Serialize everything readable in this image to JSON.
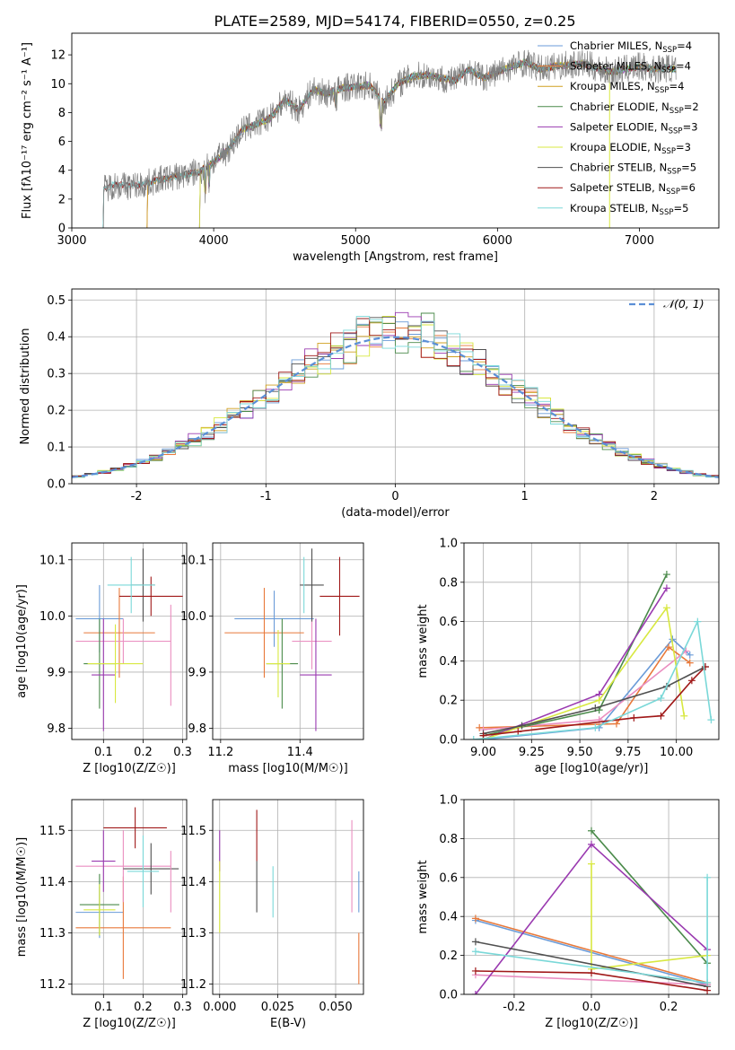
{
  "figure": {
    "title": "PLATE=2589, MJD=54174, FIBERID=0550, z=0.25"
  },
  "chart_data": [
    {
      "id": "spectrum",
      "type": "line",
      "title": "PLATE=2589, MJD=54174, FIBERID=0550, z=0.25",
      "xlabel": "wavelength [Angstrom, rest frame]",
      "ylabel": "Flux [fλ10⁻¹⁷ erg cm⁻² s⁻¹ A⁻¹]",
      "xlim": [
        3000,
        7560
      ],
      "ylim": [
        0,
        13.5
      ],
      "xticks": [
        3000,
        4000,
        5000,
        6000,
        7000
      ],
      "yticks": [
        0,
        2,
        4,
        6,
        8,
        10,
        12
      ],
      "grid": false,
      "legend_position": "top-right",
      "observed": {
        "color": "#808080",
        "x": [
          3220,
          3300,
          3400,
          3500,
          3600,
          3700,
          3800,
          3900,
          4000,
          4100,
          4200,
          4300,
          4400,
          4500,
          4600,
          4700,
          4800,
          4900,
          5000,
          5100,
          5200,
          5300,
          5400,
          5500,
          5600,
          5700,
          5800,
          5900,
          6000,
          6100,
          6200,
          6300,
          6400,
          6500,
          6600,
          6700,
          6800,
          6900,
          7000,
          7100,
          7200,
          7260
        ],
        "y": [
          2.7,
          3.0,
          2.9,
          3.0,
          3.3,
          3.5,
          3.7,
          3.9,
          4.6,
          5.4,
          6.8,
          7.2,
          7.6,
          8.9,
          8.2,
          9.6,
          9.3,
          9.7,
          9.8,
          9.9,
          8.7,
          10.0,
          10.5,
          10.6,
          10.4,
          10.2,
          11.0,
          10.4,
          10.8,
          11.2,
          11.5,
          11.0,
          11.2,
          11.3,
          11.4,
          11.1,
          10.8,
          11.0,
          11.2,
          11.0,
          11.1,
          11.0
        ]
      },
      "series": [
        {
          "name": "Chabrier MILES, N_SSP=4",
          "color": "#6a9bd8",
          "lo": 3530
        },
        {
          "name": "Salpeter MILES, N_SSP=4",
          "color": "#e8793a",
          "lo": 3530
        },
        {
          "name": "Kroupa MILES, N_SSP=4",
          "color": "#d0a020",
          "lo": 3530
        },
        {
          "name": "Chabrier ELODIE, N_SSP=2",
          "color": "#4a8a4a",
          "lo": 3900
        },
        {
          "name": "Salpeter ELODIE, N_SSP=3",
          "color": "#9a3ab0",
          "lo": 3900
        },
        {
          "name": "Kroupa ELODIE, N_SSP=3",
          "color": "#d8e840",
          "lo": 3900
        },
        {
          "name": "Chabrier STELIB, N_SSP=5",
          "color": "#505050",
          "lo": 3220
        },
        {
          "name": "Salpeter STELIB, N_SSP=6",
          "color": "#a01818",
          "lo": 3220
        },
        {
          "name": "Kroupa STELIB, N_SSP=5",
          "color": "#7ad8d8",
          "lo": 3220
        }
      ]
    },
    {
      "id": "residuals",
      "type": "line",
      "xlabel": "(data-model)/error",
      "ylabel": "Normed distribution",
      "xlim": [
        -2.5,
        2.5
      ],
      "ylim": [
        0,
        0.53
      ],
      "xticks": [
        -2,
        -1,
        0,
        1,
        2
      ],
      "yticks": [
        0.0,
        0.1,
        0.2,
        0.3,
        0.4,
        0.5
      ],
      "grid": true,
      "legend_position": "top-right",
      "gaussian": {
        "name": "N(0,1)",
        "color": "#5b8fd6",
        "mu": 0,
        "sigma": 1
      },
      "histogram_bin_width": 0.1,
      "histogram_colors": [
        "#6a9bd8",
        "#e8793a",
        "#d0a020",
        "#4a8a4a",
        "#9a3ab0",
        "#d8e840",
        "#505050",
        "#a01818",
        "#7ad8d8"
      ]
    },
    {
      "id": "age-vs-Z",
      "type": "scatter",
      "xlabel": "Z [log10(Z/Z☉)]",
      "ylabel": "age  [log10(age/yr)]",
      "xlim": [
        0.02,
        0.31
      ],
      "ylim": [
        9.78,
        10.13
      ],
      "xticks": [
        0.1,
        0.2,
        0.3
      ],
      "yticks": [
        9.8,
        9.9,
        10.0,
        10.1
      ],
      "grid": true,
      "points": [
        {
          "color": "#6a9bd8",
          "x": 0.09,
          "xerr": 0.06,
          "y": 9.995,
          "yerr": 0.06
        },
        {
          "color": "#e8793a",
          "x": 0.14,
          "xerr": 0.09,
          "y": 9.97,
          "yerr": 0.08
        },
        {
          "color": "#ea8ec0",
          "x": 0.15,
          "xerr": 0.12,
          "y": 9.955,
          "yerr": 0.04
        },
        {
          "color": "#4a8a4a",
          "x": 0.09,
          "xerr": 0.04,
          "y": 9.915,
          "yerr": 0.08
        },
        {
          "color": "#9a3ab0",
          "x": 0.1,
          "xerr": 0.03,
          "y": 9.895,
          "yerr": 0.1
        },
        {
          "color": "#d8e840",
          "x": 0.13,
          "xerr": 0.07,
          "y": 9.915,
          "yerr": 0.07
        },
        {
          "color": "#505050",
          "x": 0.2,
          "xerr": 0.03,
          "y": 10.055,
          "yerr": 0.065
        },
        {
          "color": "#a01818",
          "x": 0.22,
          "xerr": 0.08,
          "y": 10.035,
          "yerr": 0.035
        },
        {
          "color": "#7ad8d8",
          "x": 0.17,
          "xerr": 0.06,
          "y": 10.055,
          "yerr": 0.05
        },
        {
          "color": "#ea8ec0",
          "x": 0.27,
          "xerr": 0.0,
          "y": 9.93,
          "yerr": 0.09
        }
      ]
    },
    {
      "id": "age-vs-mass",
      "type": "scatter",
      "xlabel": "mass [log10(M/M☉)]",
      "ylabel": "",
      "xlim": [
        11.18,
        11.56
      ],
      "ylim": [
        9.78,
        10.13
      ],
      "xticks": [
        11.2,
        11.4
      ],
      "yticks": [
        9.8,
        9.9,
        10.0,
        10.1
      ],
      "grid": true,
      "points": [
        {
          "color": "#6a9bd8",
          "x": 11.335,
          "xerr": 0.1,
          "y": 9.995,
          "yerr": 0.05
        },
        {
          "color": "#e8793a",
          "x": 11.31,
          "xerr": 0.1,
          "y": 9.97,
          "yerr": 0.08
        },
        {
          "color": "#ea8ec0",
          "x": 11.43,
          "xerr": 0.05,
          "y": 9.955,
          "yerr": 0.05
        },
        {
          "color": "#4a8a4a",
          "x": 11.355,
          "xerr": 0.04,
          "y": 9.915,
          "yerr": 0.08
        },
        {
          "color": "#9a3ab0",
          "x": 11.44,
          "xerr": 0.04,
          "y": 9.895,
          "yerr": 0.1
        },
        {
          "color": "#d8e840",
          "x": 11.345,
          "xerr": 0.03,
          "y": 9.915,
          "yerr": 0.06
        },
        {
          "color": "#505050",
          "x": 11.43,
          "xerr": 0.03,
          "y": 10.055,
          "yerr": 0.065
        },
        {
          "color": "#a01818",
          "x": 11.5,
          "xerr": 0.05,
          "y": 10.035,
          "yerr": 0.07
        },
        {
          "color": "#7ad8d8",
          "x": 11.41,
          "xerr": 0.0,
          "y": 10.055,
          "yerr": 0.05
        }
      ]
    },
    {
      "id": "massweight-vs-age",
      "type": "line",
      "xlabel": "age  [log10(age/yr)]",
      "ylabel": "mass weight",
      "xlim": [
        8.9,
        10.22
      ],
      "ylim": [
        0,
        1.0
      ],
      "xticks": [
        9.0,
        9.25,
        9.5,
        9.75,
        10.0
      ],
      "yticks": [
        0.0,
        0.2,
        0.4,
        0.6,
        0.8,
        1.0
      ],
      "grid": true,
      "series": [
        {
          "color": "#6a9bd8",
          "x": [
            9.0,
            9.6,
            9.98,
            10.07
          ],
          "y": [
            0.0,
            0.06,
            0.51,
            0.43
          ]
        },
        {
          "color": "#e8793a",
          "x": [
            8.98,
            9.69,
            9.96,
            10.07
          ],
          "y": [
            0.06,
            0.08,
            0.47,
            0.39
          ]
        },
        {
          "color": "#ea8ec0",
          "x": [
            9.0,
            9.6,
            10.05
          ],
          "y": [
            0.05,
            0.1,
            0.45
          ]
        },
        {
          "color": "#4a8a4a",
          "x": [
            9.0,
            9.6,
            9.95
          ],
          "y": [
            0.02,
            0.15,
            0.84
          ]
        },
        {
          "color": "#9a3ab0",
          "x": [
            9.0,
            9.6,
            9.95
          ],
          "y": [
            0.0,
            0.23,
            0.77
          ]
        },
        {
          "color": "#d8e840",
          "x": [
            9.0,
            9.6,
            9.95,
            10.04
          ],
          "y": [
            0.0,
            0.2,
            0.67,
            0.12
          ]
        },
        {
          "color": "#505050",
          "x": [
            9.0,
            9.2,
            9.58,
            9.95,
            10.15
          ],
          "y": [
            0.03,
            0.07,
            0.16,
            0.27,
            0.37
          ]
        },
        {
          "color": "#a01818",
          "x": [
            9.0,
            9.18,
            9.78,
            9.92,
            10.08,
            10.15
          ],
          "y": [
            0.02,
            0.04,
            0.11,
            0.12,
            0.3,
            0.37
          ]
        },
        {
          "color": "#7ad8d8",
          "x": [
            8.95,
            9.58,
            9.92,
            10.11,
            10.18
          ],
          "y": [
            0.0,
            0.06,
            0.21,
            0.6,
            0.1
          ]
        }
      ]
    },
    {
      "id": "mass-vs-Z",
      "type": "scatter",
      "xlabel": "Z [log10(Z/Z☉)]",
      "ylabel": "mass [log10(M/M☉)]",
      "xlim": [
        0.02,
        0.31
      ],
      "ylim": [
        11.18,
        11.56
      ],
      "xticks": [
        0.1,
        0.2,
        0.3
      ],
      "yticks": [
        11.2,
        11.3,
        11.4,
        11.5
      ],
      "grid": true,
      "points": [
        {
          "color": "#6a9bd8",
          "x": 0.09,
          "xerr": 0.06,
          "y": 11.34,
          "yerr": 0.05
        },
        {
          "color": "#e8793a",
          "x": 0.15,
          "xerr": 0.12,
          "y": 11.31,
          "yerr": 0.1
        },
        {
          "color": "#ea8ec0",
          "x": 0.15,
          "xerr": 0.12,
          "y": 11.43,
          "yerr": 0.07
        },
        {
          "color": "#4a8a4a",
          "x": 0.09,
          "xerr": 0.05,
          "y": 11.355,
          "yerr": 0.06
        },
        {
          "color": "#9a3ab0",
          "x": 0.1,
          "xerr": 0.03,
          "y": 11.44,
          "yerr": 0.06
        },
        {
          "color": "#d8e840",
          "x": 0.09,
          "xerr": 0.04,
          "y": 11.345,
          "yerr": 0.05
        },
        {
          "color": "#505050",
          "x": 0.22,
          "xerr": 0.07,
          "y": 11.425,
          "yerr": 0.05
        },
        {
          "color": "#a01818",
          "x": 0.18,
          "xerr": 0.08,
          "y": 11.505,
          "yerr": 0.04
        },
        {
          "color": "#7ad8d8",
          "x": 0.2,
          "xerr": 0.04,
          "y": 11.42,
          "yerr": 0.07
        },
        {
          "color": "#ea8ec0",
          "x": 0.27,
          "xerr": 0.0,
          "y": 11.4,
          "yerr": 0.06
        }
      ]
    },
    {
      "id": "mass-vs-ebv",
      "type": "scatter",
      "xlabel": "E(B-V)",
      "ylabel": "",
      "xlim": [
        -0.003,
        0.062
      ],
      "ylim": [
        11.18,
        11.56
      ],
      "xticks": [
        0.0,
        0.025,
        0.05
      ],
      "xticklabels": [
        "0.000",
        "0.025",
        "0.050"
      ],
      "yticks": [
        11.2,
        11.3,
        11.4,
        11.5
      ],
      "grid": true,
      "points": [
        {
          "color": "#9a3ab0",
          "x": 0.0,
          "y": 11.46,
          "yerr": 0.04
        },
        {
          "color": "#d8e840",
          "x": 0.0,
          "y": 11.37,
          "yerr": 0.07
        },
        {
          "color": "#a01818",
          "x": 0.016,
          "y": 11.49,
          "yerr": 0.05
        },
        {
          "color": "#505050",
          "x": 0.016,
          "y": 11.39,
          "yerr": 0.05
        },
        {
          "color": "#7ad8d8",
          "x": 0.023,
          "y": 11.38,
          "yerr": 0.05
        },
        {
          "color": "#ea8ec0",
          "x": 0.057,
          "y": 11.43,
          "yerr": 0.09
        },
        {
          "color": "#6a9bd8",
          "x": 0.06,
          "y": 11.38,
          "yerr": 0.04
        },
        {
          "color": "#e8793a",
          "x": 0.06,
          "y": 11.25,
          "yerr": 0.05
        }
      ]
    },
    {
      "id": "massweight-vs-Z",
      "type": "line",
      "xlabel": "Z [log10(Z/Z☉)]",
      "ylabel": "mass weight",
      "xlim": [
        -0.33,
        0.33
      ],
      "ylim": [
        0,
        1.0
      ],
      "xticks": [
        -0.2,
        0.0,
        0.2
      ],
      "yticks": [
        0.0,
        0.2,
        0.4,
        0.6,
        0.8,
        1.0
      ],
      "grid": true,
      "series": [
        {
          "color": "#6a9bd8",
          "x": [
            -0.3,
            0.3
          ],
          "y": [
            0.38,
            0.05
          ]
        },
        {
          "color": "#e8793a",
          "x": [
            -0.3,
            0.3
          ],
          "y": [
            0.39,
            0.06
          ]
        },
        {
          "color": "#ea8ec0",
          "x": [
            -0.3,
            0.3
          ],
          "y": [
            0.1,
            0.05
          ]
        },
        {
          "color": "#4a8a4a",
          "x": [
            0.0,
            0.3
          ],
          "y": [
            0.84,
            0.16
          ]
        },
        {
          "color": "#9a3ab0",
          "x": [
            -0.3,
            0.0,
            0.3
          ],
          "y": [
            0.0,
            0.77,
            0.23
          ]
        },
        {
          "color": "#d8e840",
          "x": [
            0.0,
            0.0,
            0.3
          ],
          "y": [
            0.67,
            0.13,
            0.2
          ]
        },
        {
          "color": "#505050",
          "x": [
            -0.3,
            0.3
          ],
          "y": [
            0.27,
            0.04
          ]
        },
        {
          "color": "#a01818",
          "x": [
            -0.3,
            0.0,
            0.3
          ],
          "y": [
            0.12,
            0.11,
            0.02
          ]
        },
        {
          "color": "#7ad8d8",
          "x": [
            -0.3,
            0.3,
            0.3
          ],
          "y": [
            0.22,
            0.06,
            0.6
          ]
        }
      ]
    }
  ]
}
